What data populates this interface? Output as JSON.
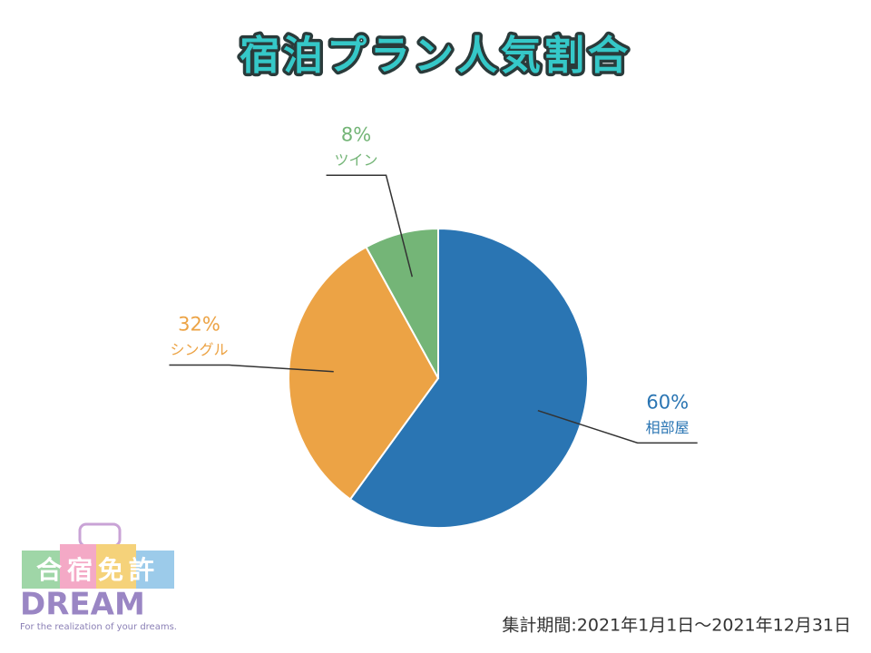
{
  "chart_data": {
    "type": "pie",
    "title": "宿泊プラン人気割合",
    "categories": [
      "相部屋",
      "シングル",
      "ツイン"
    ],
    "values": [
      60,
      32,
      8
    ],
    "value_labels": [
      "60%",
      "32%",
      "8%"
    ],
    "colors": [
      "#2a75b3",
      "#eca345",
      "#74b577"
    ]
  },
  "footer": "集計期間:2021年1月1日〜2021年12月31日",
  "logo": {
    "title": "合宿免許",
    "brand": "DREAM",
    "tagline": "For the realization of your dreams."
  }
}
